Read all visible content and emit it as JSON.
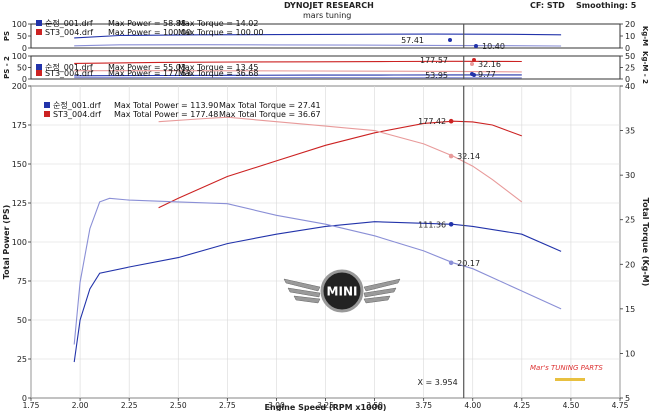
{
  "header": {
    "title": "DYNOJET RESEARCH",
    "subtitle": "mars tuning",
    "corr_label": "CF: STD",
    "smoothing_label": "Smoothing: 5"
  },
  "colors": {
    "blue": "#2233aa",
    "red": "#cc2222",
    "blue_light": "#8a8fd6",
    "red_light": "#e89a9a"
  },
  "logo": {
    "text": "MINI",
    "icon": "mini-wing-logo"
  },
  "watermark": {
    "text": "Mar's TUNING PARTS",
    "icon": "mars-tuning-watermark"
  },
  "chart_data": [
    {
      "type": "line",
      "title": "",
      "ylabel_left": "PS",
      "ylabel_right": "Kg-M",
      "ylim_left": [
        0,
        100
      ],
      "ylim_right": [
        0,
        20
      ],
      "yticks_left": [
        "0",
        "50",
        "100"
      ],
      "yticks_right": [
        "0",
        "10",
        "20"
      ],
      "legend": [
        {
          "file": "순정_001.drf",
          "text": "Max Power = 58.88",
          "extra": "Max Torque = 14.02",
          "color": "blue"
        },
        {
          "file": "ST3_004.drf",
          "text": "Max Power = 100.00",
          "extra": "Max Torque = 100.00",
          "color": "red"
        }
      ],
      "annotations": [
        "57.41",
        "10.40"
      ],
      "series": [
        {
          "name": "순정_001.drf Power",
          "color": "blue",
          "x": [
            1.97,
            2.2,
            2.6,
            3.0,
            3.4,
            3.8,
            4.2,
            4.45
          ],
          "y": [
            42,
            52,
            55,
            56,
            57,
            58,
            57,
            55
          ]
        },
        {
          "name": "순정_001.drf Torque",
          "color": "blue_light",
          "x": [
            1.97,
            2.2,
            2.6,
            3.0,
            3.4,
            3.8,
            4.2,
            4.45
          ],
          "y": [
            9,
            13.5,
            13.6,
            13,
            12,
            10.8,
            9.5,
            8.5
          ]
        }
      ]
    },
    {
      "type": "line",
      "title": "",
      "ylabel_left": "PS - 2",
      "ylabel_right": "Kg-M - 2",
      "ylim_left": [
        0,
        100
      ],
      "ylim_right": [
        0,
        50
      ],
      "yticks_left": [
        "0",
        "50",
        "100"
      ],
      "yticks_right": [
        "0",
        "25",
        "50"
      ],
      "legend": [
        {
          "file": "순정_001.drf",
          "text": "Max Power = 55.03",
          "extra": "Max Torque = 13.45",
          "color": "blue"
        },
        {
          "file": "ST3_004.drf",
          "text": "Max Power = 177.63",
          "extra": "Max Torque = 36.68",
          "color": "red"
        }
      ],
      "annotations": [
        "177.57",
        "32.16",
        "53.95",
        "9.77"
      ],
      "series": [
        {
          "name": "ST3_004.drf Power",
          "color": "red",
          "x": [
            1.97,
            2.4,
            2.8,
            3.2,
            3.6,
            3.9,
            4.25
          ],
          "y": [
            68,
            72,
            74,
            75,
            76,
            77,
            76
          ]
        },
        {
          "name": "ST3_004.drf Torque",
          "color": "red_light",
          "x": [
            1.97,
            2.4,
            2.8,
            3.2,
            3.6,
            3.9,
            4.25
          ],
          "y": [
            36,
            36,
            35.5,
            35,
            34,
            33,
            31
          ]
        },
        {
          "name": "순정_001.drf Power",
          "color": "blue",
          "x": [
            1.97,
            2.4,
            2.8,
            3.2,
            3.6,
            3.9,
            4.25
          ],
          "y": [
            14,
            15,
            16,
            17,
            17.5,
            18,
            18
          ]
        },
        {
          "name": "순정_001.drf Torque",
          "color": "blue_light",
          "x": [
            1.97,
            2.4,
            2.8,
            3.2,
            3.6,
            3.9,
            4.25
          ],
          "y": [
            6,
            6.5,
            6.3,
            6,
            5.8,
            5.5,
            5
          ]
        }
      ]
    },
    {
      "type": "line",
      "title": "",
      "xlabel": "Engine Speed (RPM x1000)",
      "ylabel_left": "Total Power (PS)",
      "ylabel_right": "Total Torque (Kg-M)",
      "xlim": [
        1.75,
        4.75
      ],
      "ylim_left": [
        0,
        200
      ],
      "ylim_right": [
        5,
        40
      ],
      "xticks": [
        "1.75",
        "2.00",
        "2.25",
        "2.50",
        "2.75",
        "3.00",
        "3.25",
        "3.50",
        "3.75",
        "4.00",
        "4.25",
        "4.50",
        "4.75"
      ],
      "yticks_left": [
        "0",
        "25",
        "50",
        "75",
        "100",
        "125",
        "150",
        "175",
        "200"
      ],
      "yticks_right": [
        "5",
        "10",
        "15",
        "20",
        "25",
        "30",
        "35",
        "40"
      ],
      "grid": true,
      "legend_position": "top-left",
      "legend": [
        {
          "file": "순정_001.drf",
          "text": "Max Total Power = 113.90",
          "extra": "Max Total Torque = 27.41",
          "color": "blue"
        },
        {
          "file": "ST3_004.drf",
          "text": "Max Total Power = 177.48",
          "extra": "Max Total Torque = 36.67",
          "color": "red"
        }
      ],
      "cursor": {
        "x": 3.954,
        "label": "X = 3.954"
      },
      "markers": [
        {
          "label": "177.42",
          "x": 3.89,
          "y": 177.42,
          "axis": "left",
          "color": "red"
        },
        {
          "label": "32.14",
          "x": 3.89,
          "y": 32.14,
          "axis": "right",
          "color": "red_light"
        },
        {
          "label": "111.36",
          "x": 3.89,
          "y": 111.36,
          "axis": "left",
          "color": "blue"
        },
        {
          "label": "20.17",
          "x": 3.89,
          "y": 20.17,
          "axis": "right",
          "color": "blue_light"
        }
      ],
      "series": [
        {
          "name": "ST3_004.drf Total Power",
          "axis": "left",
          "color": "red",
          "x": [
            2.4,
            2.5,
            2.75,
            3.0,
            3.25,
            3.5,
            3.75,
            3.9,
            4.0,
            4.1,
            4.25
          ],
          "y": [
            122,
            128,
            142,
            152,
            162,
            170,
            176,
            177.42,
            177,
            175,
            168
          ]
        },
        {
          "name": "ST3_004.drf Total Torque",
          "axis": "right",
          "color": "red_light",
          "x": [
            2.4,
            2.6,
            2.75,
            3.0,
            3.25,
            3.5,
            3.75,
            3.9,
            4.0,
            4.1,
            4.25
          ],
          "y": [
            36,
            36.3,
            36.5,
            36,
            35.5,
            35,
            33.5,
            32.14,
            31,
            29.5,
            27
          ]
        },
        {
          "name": "순정_001.drf Total Power",
          "axis": "left",
          "color": "blue",
          "x": [
            1.97,
            2.0,
            2.05,
            2.1,
            2.25,
            2.5,
            2.75,
            3.0,
            3.25,
            3.5,
            3.75,
            3.9,
            4.0,
            4.25,
            4.45
          ],
          "y": [
            23,
            50,
            70,
            80,
            84,
            90,
            99,
            105,
            110,
            113,
            112,
            111.36,
            110,
            105,
            94
          ]
        },
        {
          "name": "순정_001.drf Total Torque",
          "axis": "right",
          "color": "blue_light",
          "x": [
            1.97,
            2.0,
            2.05,
            2.1,
            2.15,
            2.25,
            2.5,
            2.75,
            3.0,
            3.25,
            3.5,
            3.75,
            3.9,
            4.0,
            4.25,
            4.45
          ],
          "y": [
            11,
            18,
            24,
            27,
            27.4,
            27.2,
            27,
            26.8,
            25.5,
            24.5,
            23.2,
            21.5,
            20.17,
            19.5,
            17,
            15
          ]
        }
      ]
    }
  ]
}
